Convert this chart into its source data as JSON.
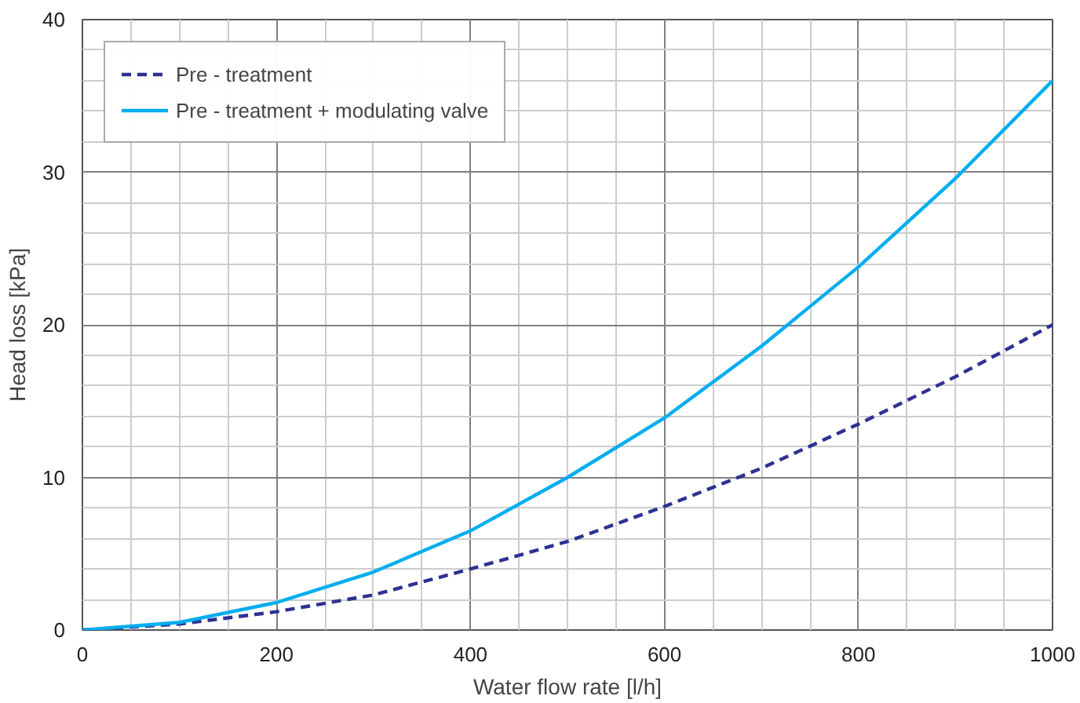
{
  "chart_data": {
    "type": "line",
    "xlabel": "Water flow rate [l/h]",
    "ylabel": "Head loss [kPa]",
    "x": [
      0,
      100,
      200,
      300,
      400,
      500,
      600,
      700,
      800,
      900,
      1000
    ],
    "series": [
      {
        "name": "Pre - treatment",
        "color": "#2e3192",
        "line_style": "dashed",
        "values": [
          0,
          0.4,
          1.2,
          2.3,
          4.0,
          5.8,
          8.1,
          10.6,
          13.5,
          16.6,
          20
        ]
      },
      {
        "name": "Pre - treatment + modulating valve",
        "color": "#00aeef",
        "line_style": "solid",
        "values": [
          0,
          0.5,
          1.8,
          3.8,
          6.5,
          10,
          13.9,
          18.6,
          23.8,
          29.6,
          36
        ]
      }
    ],
    "xlim": [
      0,
      1000
    ],
    "ylim": [
      0,
      40
    ],
    "xticks": [
      0,
      {
        "value": 50,
        "label": null
      },
      {
        "value": 100,
        "label": null
      },
      {
        "value": 150,
        "label": null
      },
      200,
      {
        "value": 250,
        "label": null
      },
      {
        "value": 300,
        "label": null
      },
      {
        "value": 350,
        "label": null
      },
      400,
      {
        "value": 450,
        "label": null
      },
      {
        "value": 500,
        "label": null
      },
      {
        "value": 550,
        "label": null
      },
      600,
      {
        "value": 650,
        "label": null
      },
      {
        "value": 700,
        "label": null
      },
      {
        "value": 750,
        "label": null
      },
      800,
      {
        "value": 850,
        "label": null
      },
      {
        "value": 900,
        "label": null
      },
      {
        "value": 950,
        "label": null
      },
      1000
    ],
    "yticks": [
      0,
      {
        "value": 2,
        "label": null
      },
      {
        "value": 4,
        "label": null
      },
      {
        "value": 6,
        "label": null
      },
      {
        "value": 8,
        "label": null
      },
      10,
      {
        "value": 12,
        "label": null
      },
      {
        "value": 14,
        "label": null
      },
      {
        "value": 16,
        "label": null
      },
      {
        "value": 18,
        "label": null
      },
      20,
      {
        "value": 22,
        "label": null
      },
      {
        "value": 24,
        "label": null
      },
      {
        "value": 26,
        "label": null
      },
      {
        "value": 28,
        "label": null
      },
      30,
      {
        "value": 32,
        "label": null
      },
      {
        "value": 34,
        "label": null
      },
      {
        "value": 36,
        "label": null
      },
      {
        "value": 38,
        "label": null
      },
      40
    ],
    "grid": true,
    "legend": "top left",
    "marker": "none"
  }
}
